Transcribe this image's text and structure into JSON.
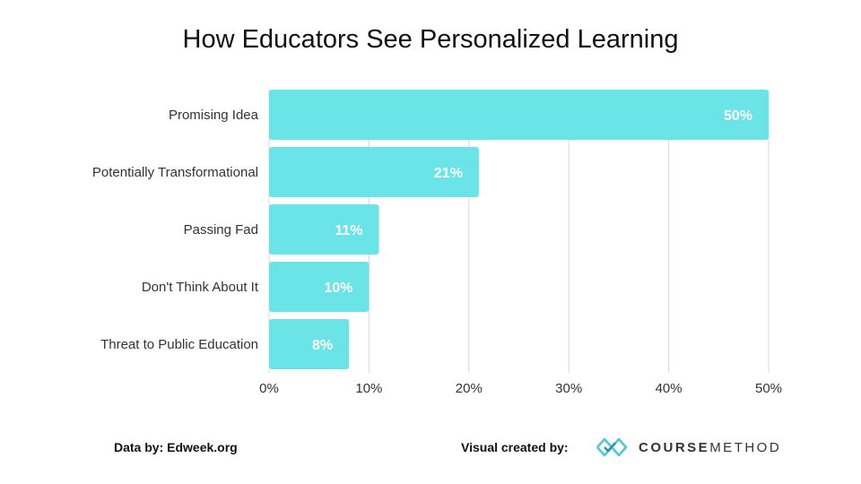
{
  "chart_data": {
    "type": "bar",
    "orientation": "horizontal",
    "title": "How Educators See Personalized Learning",
    "categories": [
      "Promising Idea",
      "Potentially Transformational",
      "Passing Fad",
      "Don't Think About It",
      "Threat to Public Education"
    ],
    "values": [
      50,
      21,
      11,
      10,
      8
    ],
    "data_labels": [
      "50%",
      "21%",
      "11%",
      "10%",
      "8%"
    ],
    "xlim": [
      0,
      50
    ],
    "x_ticks": [
      0,
      10,
      20,
      30,
      40,
      50
    ],
    "x_tick_labels": [
      "0%",
      "10%",
      "20%",
      "30%",
      "40%",
      "50%"
    ],
    "grid": true,
    "bar_color": "#6be4e8",
    "label_color": "#ffffff"
  },
  "footer": {
    "data_by": "Data by:  Edweek.org",
    "visual_by": "Visual created by:",
    "brand_part1": "COURSE",
    "brand_part2": "METHOD",
    "brand_color": "#4fc8d8"
  }
}
